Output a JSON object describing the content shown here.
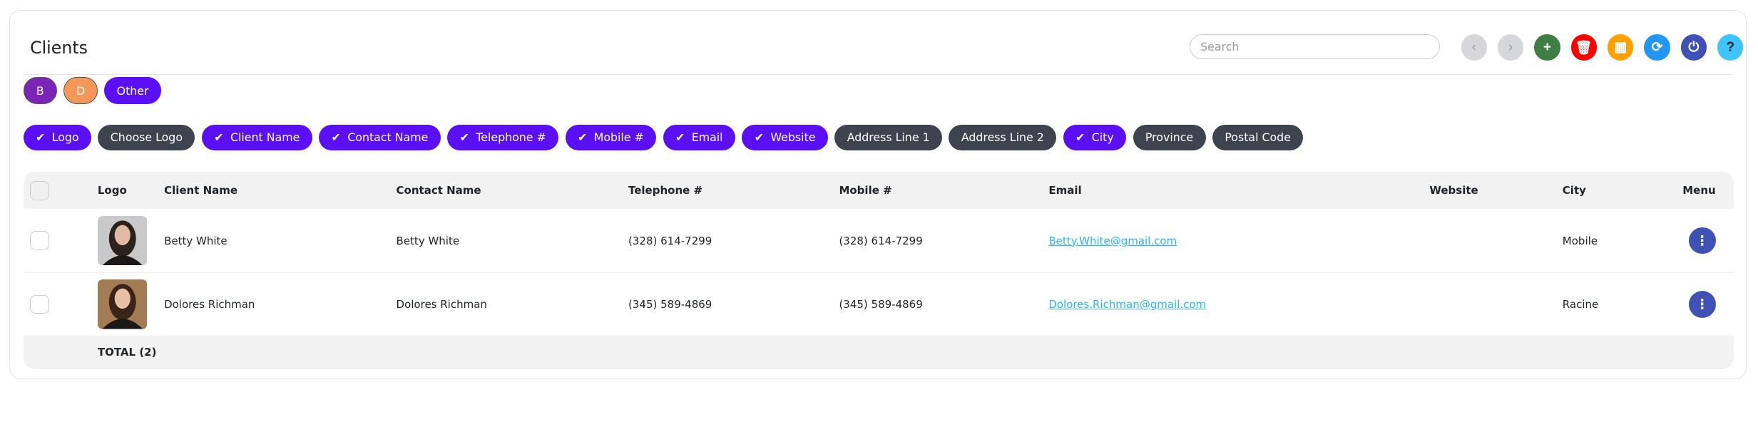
{
  "header": {
    "title": "Clients",
    "search_placeholder": "Search"
  },
  "toolbar": [
    {
      "name": "prev-button",
      "icon": "chevron-left-icon",
      "glyph": "‹",
      "color": "#d6d7db",
      "fg": "#aaa"
    },
    {
      "name": "next-button",
      "icon": "chevron-right-icon",
      "glyph": "›",
      "color": "#d6d7db",
      "fg": "#aaa"
    },
    {
      "name": "add-button",
      "icon": "plus-icon",
      "glyph": "+",
      "color": "#3e7d44",
      "fg": "#fff"
    },
    {
      "name": "delete-button",
      "icon": "trash-icon",
      "glyph": "🗑",
      "color": "#ff0000",
      "fg": "#fff"
    },
    {
      "name": "windows-button",
      "icon": "windows-icon",
      "glyph": "▦",
      "color": "#ffa000",
      "fg": "#fff"
    },
    {
      "name": "refresh-button",
      "icon": "refresh-icon",
      "glyph": "⟳",
      "color": "#2196f3",
      "fg": "#fff"
    },
    {
      "name": "power-button",
      "icon": "power-icon",
      "glyph": "⏻",
      "color": "#3f51b5",
      "fg": "#fff"
    },
    {
      "name": "help-button",
      "icon": "help-icon",
      "glyph": "?",
      "color": "#40c4ff",
      "fg": "#222"
    }
  ],
  "groups": [
    {
      "label": "B",
      "color": "#7b24b8"
    },
    {
      "label": "D",
      "color": "#f4985a"
    },
    {
      "label": "Other",
      "color": "#5a0ff5"
    }
  ],
  "columns_toggle": [
    {
      "label": "Logo",
      "on": true
    },
    {
      "label": "Choose Logo",
      "on": false
    },
    {
      "label": "Client Name",
      "on": true
    },
    {
      "label": "Contact Name",
      "on": true
    },
    {
      "label": "Telephone #",
      "on": true
    },
    {
      "label": "Mobile #",
      "on": true
    },
    {
      "label": "Email",
      "on": true
    },
    {
      "label": "Website",
      "on": true
    },
    {
      "label": "Address Line 1",
      "on": false
    },
    {
      "label": "Address Line 2",
      "on": false
    },
    {
      "label": "City",
      "on": true
    },
    {
      "label": "Province",
      "on": false
    },
    {
      "label": "Postal Code",
      "on": false
    }
  ],
  "table": {
    "headers": [
      "Logo",
      "Client Name",
      "Contact Name",
      "Telephone #",
      "Mobile #",
      "Email",
      "Website",
      "City",
      "Menu"
    ],
    "rows": [
      {
        "client": "Betty White",
        "contact": "Betty White",
        "tel": "(328) 614-7299",
        "mobile": "(328) 614-7299",
        "email": "Betty.White@gmail.com",
        "website": "",
        "city": "Mobile"
      },
      {
        "client": "Dolores Richman",
        "contact": "Dolores Richman",
        "tel": "(345) 589-4869",
        "mobile": "(345) 589-4869",
        "email": "Dolores.Richman@gmail.com",
        "website": "",
        "city": "Racine"
      }
    ],
    "total": "TOTAL (2)"
  }
}
